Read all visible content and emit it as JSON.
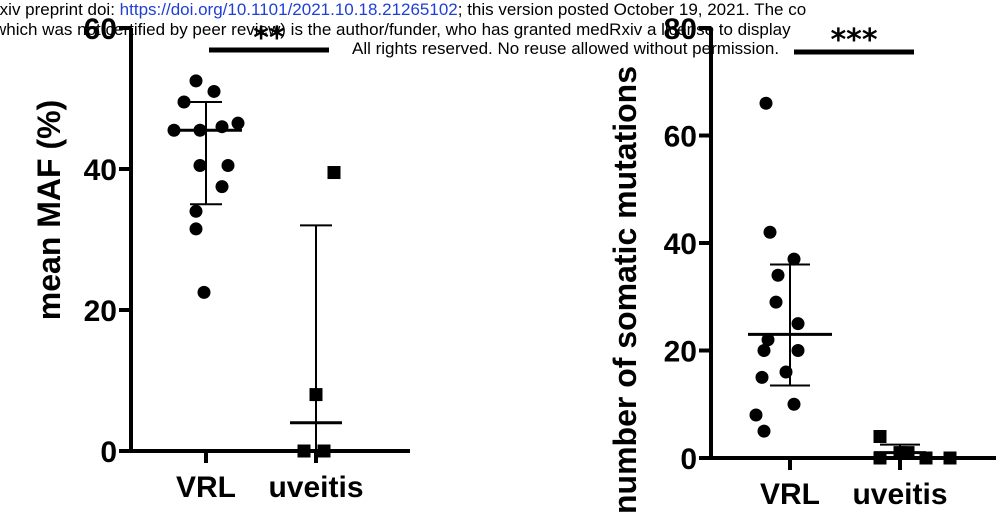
{
  "header": {
    "line1_prefix": "rxiv preprint doi:",
    "line1_link": "https://doi.org/10.1101/2021.10.18.21265102",
    "line1_suffix": "; this version posted October 19, 2021. The co",
    "line2": "which was not certified by peer review) is the author/funder, who has granted medRxiv a license to display",
    "line3": "All rights reserved. No reuse allowed without permission."
  },
  "chart_data": [
    {
      "type": "scatter",
      "title": "",
      "xlabel": "",
      "ylabel": "mean MAF (%)",
      "ylim": [
        0,
        60
      ],
      "yticks": [
        0,
        20,
        40,
        60
      ],
      "categories": [
        "VRL",
        "uveitis"
      ],
      "significance": "**",
      "series": [
        {
          "category": "VRL",
          "marker": "circle",
          "values": [
            52.5,
            51,
            49.5,
            46,
            45.5,
            45.5,
            46.5,
            40.5,
            40.5,
            37.5,
            34,
            31.5,
            22.5
          ],
          "mean": 45.5,
          "error_low": 35,
          "error_high": 49.5
        },
        {
          "category": "uveitis",
          "marker": "square",
          "values": [
            39.5,
            8,
            0,
            0
          ],
          "mean": 4,
          "error_low": 0,
          "error_high": 32
        }
      ]
    },
    {
      "type": "scatter",
      "title": "",
      "xlabel": "",
      "ylabel": "number of somatic mutations",
      "ylim": [
        0,
        80
      ],
      "yticks": [
        0,
        20,
        40,
        60,
        80
      ],
      "categories": [
        "VRL",
        "uveitis"
      ],
      "significance": "***",
      "series": [
        {
          "category": "VRL",
          "marker": "circle",
          "values": [
            66,
            42,
            37,
            34,
            29,
            25,
            22,
            20,
            20,
            15,
            16,
            10,
            8,
            5
          ],
          "mean": 23,
          "error_low": 13.5,
          "error_high": 36
        },
        {
          "category": "uveitis",
          "marker": "square",
          "values": [
            4,
            1,
            1,
            0,
            0,
            0
          ],
          "mean": 1,
          "error_low": 0,
          "error_high": 2.5
        }
      ]
    }
  ]
}
